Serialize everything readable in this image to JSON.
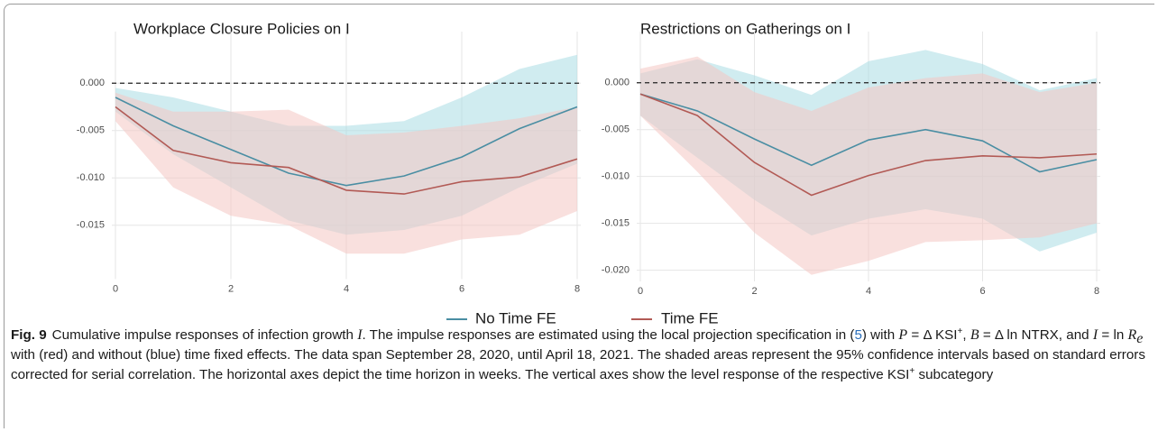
{
  "chart_data": [
    {
      "type": "line",
      "title": "Workplace Closure Policies on I",
      "x": [
        0,
        1,
        2,
        3,
        4,
        5,
        6,
        7,
        8
      ],
      "xlim": [
        0,
        8
      ],
      "xticks": [
        0,
        2,
        4,
        6,
        8
      ],
      "ylim": [
        -0.0205,
        0.0045
      ],
      "yticks": [
        {
          "value": 0,
          "label": "0.000"
        },
        {
          "value": -0.005,
          "label": "-0.005"
        },
        {
          "value": -0.01,
          "label": "-0.010"
        },
        {
          "value": -0.015,
          "label": "-0.015"
        }
      ],
      "hline": 0,
      "grid": true,
      "series": [
        {
          "name": "No Time FE",
          "color": "#4a8ea3",
          "band_color": "#a9dde3",
          "values": [
            -0.0015,
            -0.0045,
            -0.007,
            -0.0095,
            -0.0108,
            -0.0098,
            -0.0078,
            -0.0048,
            -0.0025
          ],
          "upper": [
            -0.0005,
            -0.0015,
            -0.003,
            -0.0045,
            -0.0045,
            -0.004,
            -0.0015,
            0.0015,
            0.003
          ],
          "lower": [
            -0.003,
            -0.0075,
            -0.011,
            -0.0145,
            -0.016,
            -0.0155,
            -0.014,
            -0.011,
            -0.0085
          ]
        },
        {
          "name": "Time FE",
          "color": "#b25a55",
          "band_color": "#f4c6c2",
          "values": [
            -0.0025,
            -0.0071,
            -0.0084,
            -0.0089,
            -0.0113,
            -0.0117,
            -0.0104,
            -0.0099,
            -0.008
          ],
          "upper": [
            -0.001,
            -0.003,
            -0.003,
            -0.0028,
            -0.0055,
            -0.0052,
            -0.0045,
            -0.0037,
            -0.0025
          ],
          "lower": [
            -0.004,
            -0.011,
            -0.014,
            -0.015,
            -0.018,
            -0.018,
            -0.0165,
            -0.016,
            -0.0135
          ]
        }
      ]
    },
    {
      "type": "line",
      "title": "Restrictions on Gatherings on I",
      "x": [
        0,
        1,
        2,
        3,
        4,
        5,
        6,
        7,
        8
      ],
      "xlim": [
        0,
        8
      ],
      "xticks": [
        0,
        2,
        4,
        6,
        8
      ],
      "ylim": [
        -0.021,
        0.0045
      ],
      "yticks": [
        {
          "value": 0,
          "label": "0.000"
        },
        {
          "value": -0.005,
          "label": "-0.005"
        },
        {
          "value": -0.01,
          "label": "-0.010"
        },
        {
          "value": -0.015,
          "label": "-0.015"
        },
        {
          "value": -0.02,
          "label": "-0.020"
        }
      ],
      "hline": 0,
      "grid": true,
      "series": [
        {
          "color": "#4a8ea3",
          "band_color": "#a9dde3",
          "values": [
            -0.0012,
            -0.003,
            -0.006,
            -0.0088,
            -0.0061,
            -0.005,
            -0.0062,
            -0.0095,
            -0.0082
          ],
          "upper": [
            0.001,
            0.0025,
            0.0008,
            -0.0013,
            0.0023,
            0.0035,
            0.002,
            -0.0008,
            0.0005
          ],
          "lower": [
            -0.0035,
            -0.008,
            -0.0125,
            -0.0163,
            -0.0145,
            -0.0135,
            -0.0145,
            -0.018,
            -0.016
          ]
        },
        {
          "color": "#b25a55",
          "band_color": "#f4c6c2",
          "values": [
            -0.0012,
            -0.0035,
            -0.0085,
            -0.012,
            -0.0099,
            -0.0083,
            -0.0078,
            -0.008,
            -0.0076
          ],
          "upper": [
            0.0015,
            0.0028,
            -0.001,
            -0.003,
            -0.0005,
            0.0005,
            0.001,
            -0.001,
            0
          ],
          "lower": [
            -0.0035,
            -0.0095,
            -0.016,
            -0.0205,
            -0.019,
            -0.017,
            -0.0168,
            -0.0165,
            -0.015
          ]
        }
      ]
    }
  ],
  "caption": {
    "label": "Fig. 9",
    "parts": [
      "Cumulative impulse responses of infection growth ",
      "I",
      ". The impulse responses are estimated using the local projection specification in (",
      "5",
      ") with ",
      "P",
      " = Δ KSI",
      "+",
      ", ",
      "B",
      " = Δ ln NTRX, and ",
      "I",
      " = ln ",
      "R",
      "e",
      " with (red) and without (blue) time fixed effects. The data span September 28, 2020, until April 18, 2021. The shaded areas represent the 95% confidence intervals based on standard errors corrected for serial correlation. The horizontal axes depict the time horizon in weeks. The vertical axes show the level response of the respective KSI",
      "+",
      " subcategory"
    ]
  }
}
